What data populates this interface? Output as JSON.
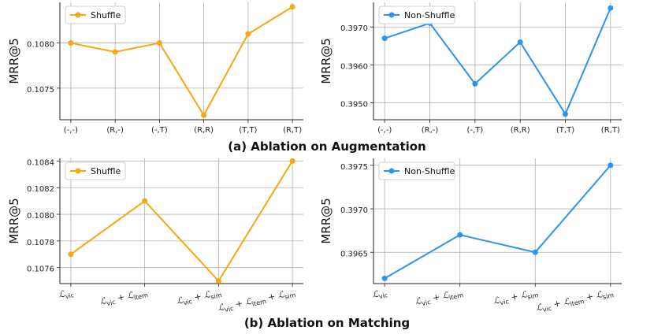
{
  "captions": {
    "a": "(a) Ablation on Augmentation",
    "b": "(b) Ablation on Matching"
  },
  "colors": {
    "shuffle": "#F5A80F",
    "nonshuffle": "#2C93EE",
    "grid": "#b0b0b0"
  },
  "chart_data": [
    {
      "type": "line",
      "series": [
        {
          "name": "Shuffle",
          "values": [
            0.108,
            0.1079,
            0.108,
            0.1072,
            0.1081,
            0.1084
          ]
        }
      ],
      "categories": [
        "(-,-)",
        "(R,-)",
        "(-,T)",
        "(R,R)",
        "(T,T)",
        "(R,T)"
      ],
      "xlabel_kind": "plain",
      "ylabel": "MRR@5",
      "ylim": [
        0.10715,
        0.10845
      ],
      "yticks": [
        0.1075,
        0.108
      ],
      "ytick_labels": [
        "0.1075",
        "0.1080"
      ],
      "legend": "Shuffle",
      "color": "#F5A80F"
    },
    {
      "type": "line",
      "series": [
        {
          "name": "Non-Shuffle",
          "values": [
            0.3967,
            0.3971,
            0.3955,
            0.3966,
            0.3947,
            0.3975
          ]
        }
      ],
      "categories": [
        "(-,-)",
        "(R,-)",
        "(-,T)",
        "(R,R)",
        "(T,T)",
        "(R,T)"
      ],
      "xlabel_kind": "plain",
      "ylabel": "MRR@5",
      "ylim": [
        0.39455,
        0.39765
      ],
      "yticks": [
        0.395,
        0.396,
        0.397
      ],
      "ytick_labels": [
        "0.3950",
        "0.3960",
        "0.3970"
      ],
      "legend": "Non-Shuffle",
      "color": "#2C93EE"
    },
    {
      "type": "line",
      "series": [
        {
          "name": "Shuffle",
          "values": [
            0.1077,
            0.1081,
            0.1075,
            0.1084
          ]
        }
      ],
      "categories": [
        "ℒvic",
        "ℒvic + ℒitem",
        "ℒvic + ℒsim",
        "ℒvic + ℒitem + ℒsim"
      ],
      "category_parts": [
        [
          [
            "L",
            "vic"
          ]
        ],
        [
          [
            "L",
            "vic"
          ],
          [
            "L",
            "item"
          ]
        ],
        [
          [
            "L",
            "vic"
          ],
          [
            "L",
            "sim"
          ]
        ],
        [
          [
            "L",
            "vic"
          ],
          [
            "L",
            "item"
          ],
          [
            "L",
            "sim"
          ]
        ]
      ],
      "xlabel_kind": "loss",
      "ylabel": "MRR@5",
      "ylim": [
        0.10748,
        0.10842
      ],
      "yticks": [
        0.1076,
        0.1078,
        0.108,
        0.1082,
        0.1084
      ],
      "ytick_labels": [
        "0.1076",
        "0.1078",
        "0.1080",
        "0.1082",
        "0.1084"
      ],
      "legend": "Shuffle",
      "color": "#F5A80F"
    },
    {
      "type": "line",
      "series": [
        {
          "name": "Non-Shuffle",
          "values": [
            0.3962,
            0.3967,
            0.3965,
            0.3975
          ]
        }
      ],
      "categories": [
        "ℒvic",
        "ℒvic + ℒitem",
        "ℒvic + ℒsim",
        "ℒvic + ℒitem + ℒsim"
      ],
      "category_parts": [
        [
          [
            "L",
            "vic"
          ]
        ],
        [
          [
            "L",
            "vic"
          ],
          [
            "L",
            "item"
          ]
        ],
        [
          [
            "L",
            "vic"
          ],
          [
            "L",
            "sim"
          ]
        ],
        [
          [
            "L",
            "vic"
          ],
          [
            "L",
            "item"
          ],
          [
            "L",
            "sim"
          ]
        ]
      ],
      "xlabel_kind": "loss",
      "ylabel": "MRR@5",
      "ylim": [
        0.39614,
        0.39758
      ],
      "yticks": [
        0.3965,
        0.397,
        0.3975
      ],
      "ytick_labels": [
        "0.3965",
        "0.3970",
        "0.3975"
      ],
      "legend": "Non-Shuffle",
      "color": "#2C93EE"
    }
  ]
}
